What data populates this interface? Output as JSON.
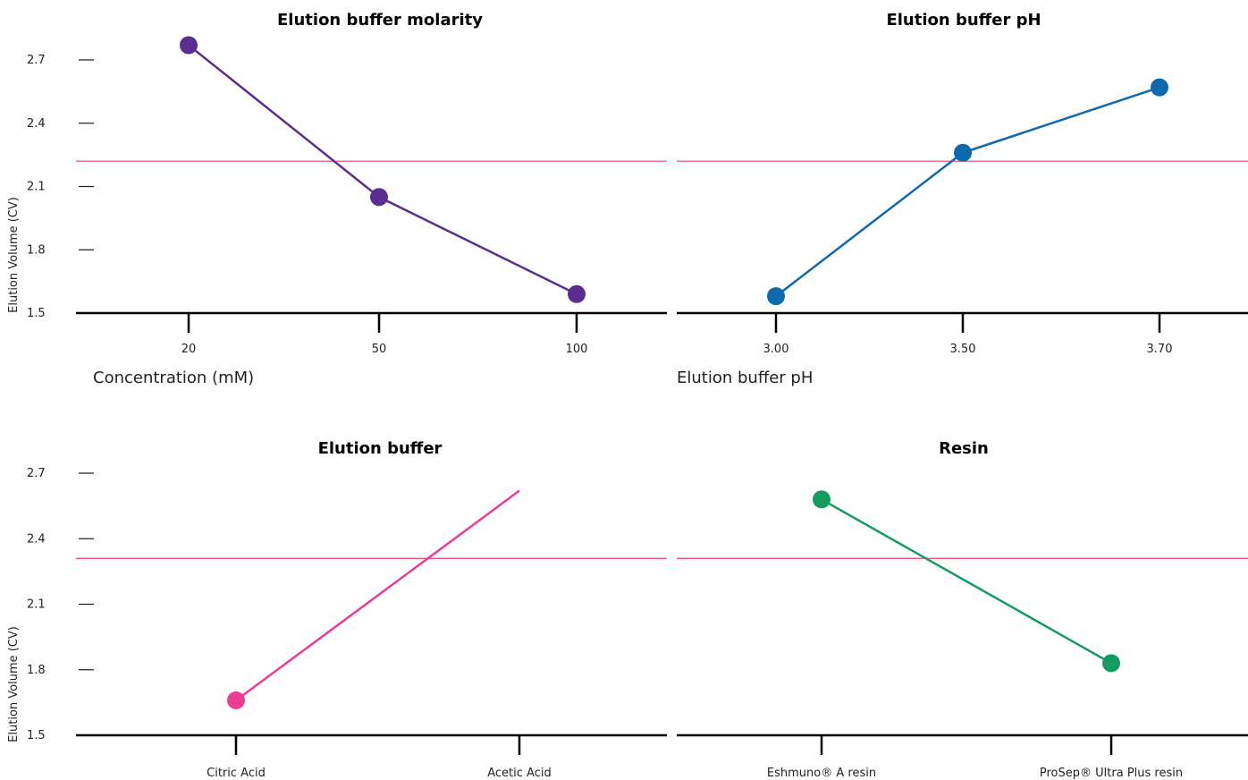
{
  "chart_data": [
    {
      "type": "line",
      "title": "Elution buffer molarity",
      "xlabel": "Concentration (mM)",
      "ylabel": "Elution Volume (CV)",
      "categories": [
        "20",
        "50",
        "100"
      ],
      "yticks": [
        "1.5",
        "1.8",
        "2.1",
        "2.4",
        "2.7"
      ],
      "ylim": [
        1.5,
        2.7
      ],
      "reference_line": 2.22,
      "color": "#5b2d90",
      "values": [
        2.77,
        2.05,
        1.59
      ]
    },
    {
      "type": "line",
      "title": "Elution buffer pH",
      "xlabel": "Elution buffer pH",
      "ylabel": "",
      "categories": [
        "3.00",
        "3.50",
        "3.70"
      ],
      "yticks": [],
      "ylim": [
        1.5,
        2.7
      ],
      "reference_line": 2.22,
      "color": "#0f69af",
      "values": [
        1.58,
        2.26,
        2.57
      ]
    },
    {
      "type": "line",
      "title": "Elution buffer",
      "xlabel": "",
      "ylabel": "Elution Volume (CV)",
      "categories": [
        "Citric Acid",
        "Acetic Acid"
      ],
      "yticks": [
        "1.5",
        "1.8",
        "2.1",
        "2.4",
        "2.7"
      ],
      "ylim": [
        1.5,
        2.7
      ],
      "reference_line": 2.31,
      "color": "#eb3c96",
      "values": [
        1.66,
        2.62
      ]
    },
    {
      "type": "line",
      "title": "Resin",
      "xlabel": "",
      "ylabel": "",
      "categories": [
        "Eshmuno® A resin",
        "ProSep® Ultra Plus resin"
      ],
      "yticks": [],
      "ylim": [
        1.5,
        2.7
      ],
      "reference_line": 2.31,
      "color": "#149b5f",
      "values": [
        2.58,
        1.83
      ]
    }
  ],
  "reference_color": "#e5406b"
}
